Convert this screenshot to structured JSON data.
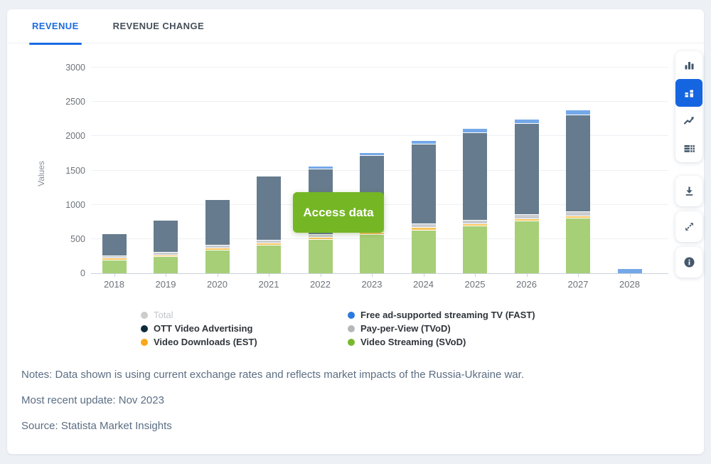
{
  "tabs": [
    {
      "label": "REVENUE",
      "active": true
    },
    {
      "label": "REVENUE CHANGE",
      "active": false
    }
  ],
  "access_button": {
    "label": "Access data",
    "color": "#75b625"
  },
  "chart_data": {
    "type": "bar",
    "stacked": true,
    "ylabel": "Values",
    "ylim": [
      0,
      3000
    ],
    "yticks": [
      0,
      500,
      1000,
      1500,
      2000,
      2500,
      3000
    ],
    "grid": true,
    "legend_position": "bottom",
    "categories": [
      "2018",
      "2019",
      "2020",
      "2021",
      "2022",
      "2023",
      "2024",
      "2025",
      "2026",
      "2027",
      "2028"
    ],
    "series": [
      {
        "name": "Video Streaming (SVoD)",
        "bar_color": "#a7cf77",
        "legend_color": "#77b82d",
        "values": [
          185,
          235,
          335,
          405,
          483,
          558,
          628,
          683,
          758,
          795,
          0
        ]
      },
      {
        "name": "Video Downloads (EST)",
        "bar_color": "#f9c35b",
        "legend_color": "#f8a81c",
        "values": [
          30,
          28,
          30,
          32,
          32,
          33,
          34,
          35,
          36,
          37,
          0
        ]
      },
      {
        "name": "Pay-per-View (TVoD)",
        "bar_color": "#c9cdd1",
        "legend_color": "#b5b8ba",
        "values": [
          35,
          37,
          40,
          45,
          45,
          47,
          50,
          52,
          54,
          56,
          0
        ]
      },
      {
        "name": "OTT Video Advertising",
        "bar_color": "#667b8d",
        "legend_color": "#0e2b3d",
        "values": [
          320,
          465,
          660,
          930,
          960,
          1075,
          1165,
          1275,
          1330,
          1420,
          0
        ]
      },
      {
        "name": "Free ad-supported streaming TV (FAST)",
        "bar_color": "#74a8e8",
        "legend_color": "#2b7ade",
        "values": [
          0,
          0,
          0,
          0,
          35,
          45,
          55,
          65,
          68,
          70,
          60
        ]
      }
    ],
    "totals": [
      570,
      765,
      1065,
      1412,
      1555,
      1758,
      1932,
      2110,
      2246,
      2378,
      60
    ]
  },
  "legend": {
    "col1": [
      {
        "label": "Total",
        "color": "#cccccc",
        "disabled": true
      },
      {
        "label": "OTT Video Advertising",
        "color": "#0e2b3d",
        "disabled": false
      },
      {
        "label": "Video Downloads (EST)",
        "color": "#f8a81c",
        "disabled": false
      }
    ],
    "col2": [
      {
        "label": "Free ad-supported streaming TV (FAST)",
        "color": "#2b7ade",
        "disabled": false
      },
      {
        "label": "Pay-per-View (TVoD)",
        "color": "#b5b8ba",
        "disabled": false
      },
      {
        "label": "Video Streaming (SVoD)",
        "color": "#77b82d",
        "disabled": false
      }
    ]
  },
  "toolbar": {
    "active_color": "#1565e1",
    "chart_types": [
      {
        "icon": "bar-chart-icon",
        "active": false
      },
      {
        "icon": "stacked-bar-chart-icon",
        "active": true
      },
      {
        "icon": "line-chart-icon",
        "active": false
      },
      {
        "icon": "data-table-icon",
        "active": false
      }
    ],
    "actions": [
      {
        "icon": "download-icon"
      },
      {
        "icon": "fullscreen-icon"
      },
      {
        "icon": "info-icon"
      }
    ]
  },
  "notes": {
    "notes_line": "Notes: Data shown is using current exchange rates and reflects market impacts of the Russia-Ukraine war.",
    "update_line": "Most recent update: Nov 2023",
    "source_line": "Source: Statista Market Insights"
  }
}
